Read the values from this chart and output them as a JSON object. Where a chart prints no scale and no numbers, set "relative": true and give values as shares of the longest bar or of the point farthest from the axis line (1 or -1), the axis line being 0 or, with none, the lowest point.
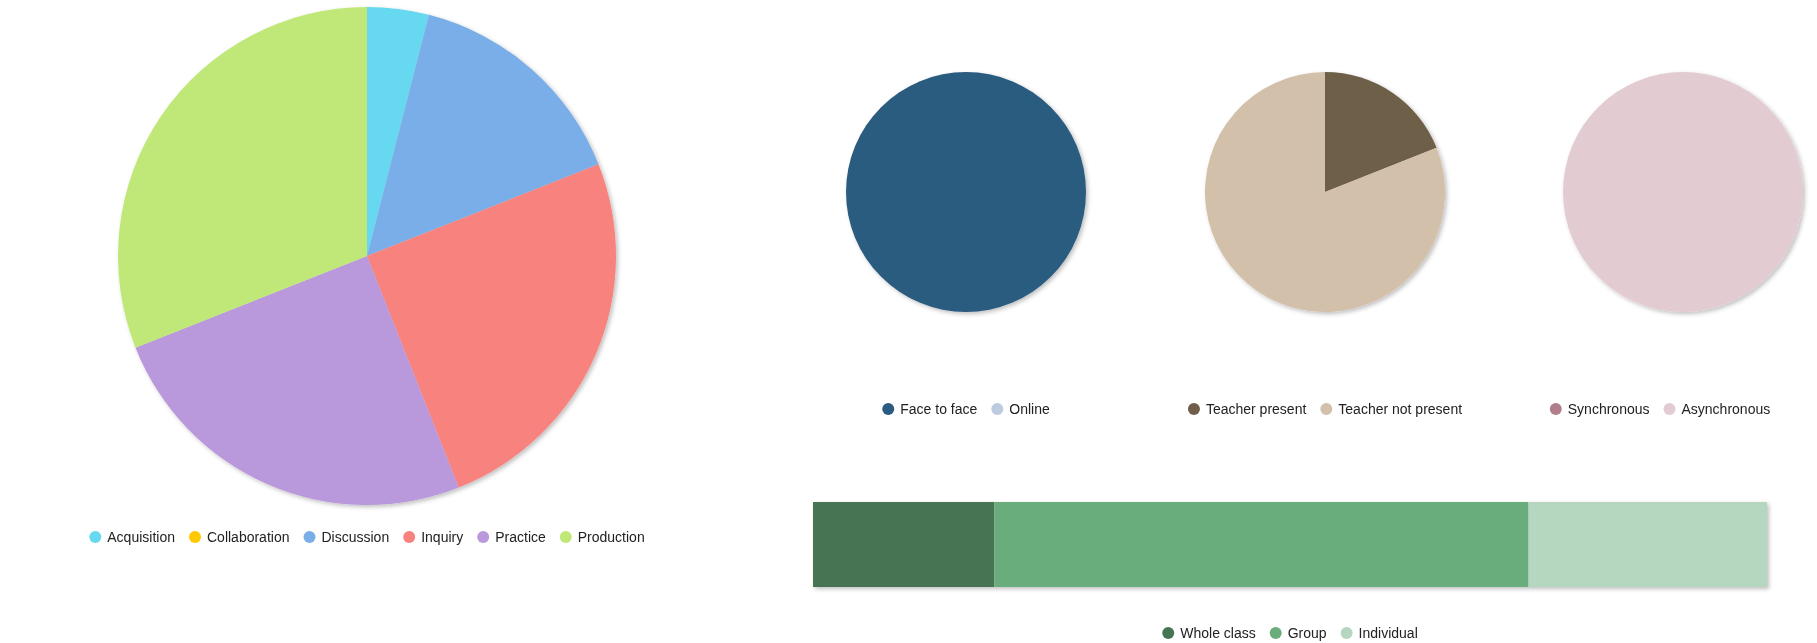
{
  "chart_data": [
    {
      "type": "pie",
      "categories": [
        "Acquisition",
        "Collaboration",
        "Discussion",
        "Inquiry",
        "Practice",
        "Production"
      ],
      "values": [
        4,
        0,
        15,
        25,
        25,
        31
      ],
      "colors": [
        "#66d9f0",
        "#ffc800",
        "#7aaee8",
        "#f7827e",
        "#b998dc",
        "#c0e878"
      ],
      "legend": "bottom"
    },
    {
      "type": "pie",
      "categories": [
        "Face to face",
        "Online"
      ],
      "values": [
        100,
        0
      ],
      "colors": [
        "#2b5b80",
        "#bccbdf"
      ],
      "legend": "bottom"
    },
    {
      "type": "pie",
      "categories": [
        "Teacher present",
        "Teacher not present"
      ],
      "values": [
        19,
        81
      ],
      "colors": [
        "#6e5e4a",
        "#d3c0ab"
      ],
      "legend": "bottom"
    },
    {
      "type": "pie",
      "categories": [
        "Synchronous",
        "Asynchronous"
      ],
      "values": [
        0,
        100
      ],
      "colors": [
        "#b07f8b",
        "#e2ccd2"
      ],
      "legend": "bottom"
    },
    {
      "type": "bar",
      "orientation": "horizontal",
      "stacked": true,
      "relative": true,
      "categories": [
        null
      ],
      "legend": "bottom",
      "series": [
        {
          "name": "Whole class",
          "color": "#467553",
          "values": [
            0.19
          ]
        },
        {
          "name": "Group",
          "color": "#6aad7b",
          "values": [
            0.56
          ]
        },
        {
          "name": "Individual",
          "color": "#b5d6bf",
          "values": [
            0.25
          ]
        }
      ]
    }
  ]
}
